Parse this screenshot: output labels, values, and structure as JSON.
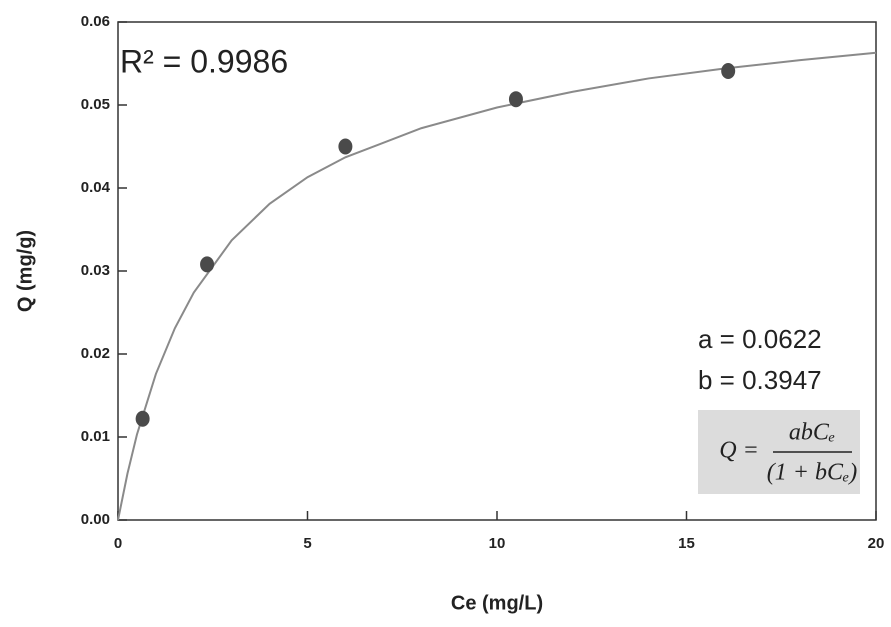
{
  "chart_data": {
    "type": "scatter",
    "xlabel": "Ce (mg/L)",
    "ylabel": "Q (mg/g)",
    "xlim": [
      0,
      20
    ],
    "xticks": [
      0,
      5,
      10,
      15,
      20
    ],
    "ylim": [
      0,
      0.06
    ],
    "yticks": [
      {
        "value": 0,
        "label": "0.00"
      },
      0.01,
      0.02,
      0.03,
      0.04,
      0.05,
      0.06
    ],
    "points": {
      "color": "#4a4a4a",
      "x": [
        0.65,
        2.35,
        6.0,
        10.5,
        16.1
      ],
      "y": [
        0.0122,
        0.0308,
        0.045,
        0.0507,
        0.0541
      ]
    },
    "fit": {
      "color": "#8a8a8a",
      "x": [
        0,
        0.25,
        0.5,
        1,
        1.5,
        2,
        3,
        4,
        5,
        6,
        8,
        10,
        12,
        14,
        16,
        18,
        20
      ],
      "y": [
        0,
        0.0056,
        0.0103,
        0.0176,
        0.0231,
        0.0274,
        0.0337,
        0.0381,
        0.0413,
        0.0437,
        0.0472,
        0.0497,
        0.0516,
        0.0532,
        0.0544,
        0.0554,
        0.0563
      ]
    },
    "annotations": {
      "r2": "R² = 0.9986",
      "a": "a = 0.0622",
      "b": "b = 0.3947"
    },
    "formula": {
      "lhs": "Q =",
      "numerator": "abCₑ",
      "denominator": "(1 + bCₑ)"
    }
  }
}
